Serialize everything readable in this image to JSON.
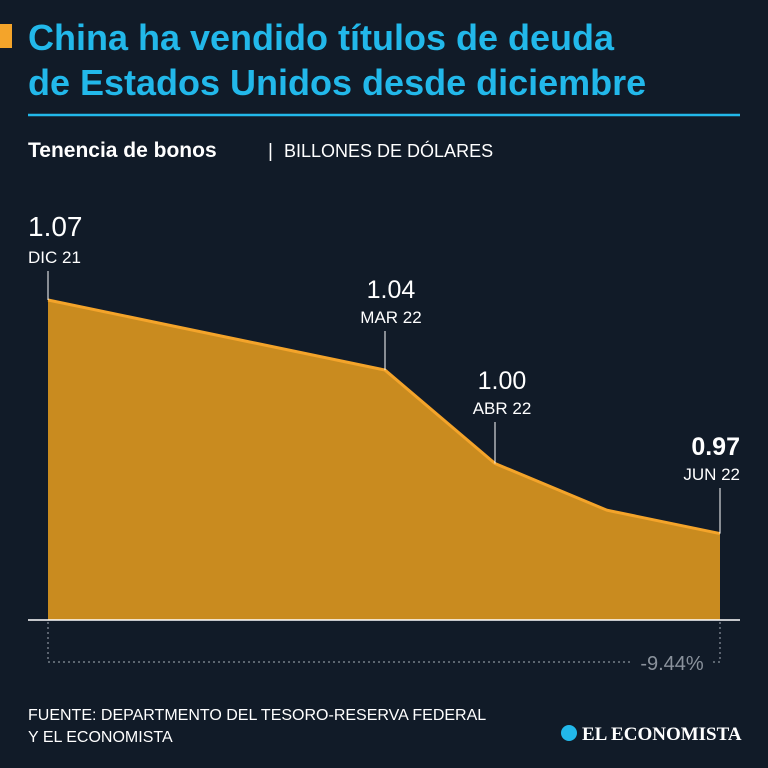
{
  "chart_data": {
    "type": "area",
    "title": [
      "China ha vendido títulos de deuda",
      "de Estados Unidos desde diciembre"
    ],
    "subtitle": "Tenencia de bonos",
    "unit": "BILLONES DE DÓLARES",
    "categories": [
      "DIC 21",
      "MAR 22",
      "ABR 22",
      null,
      "JUN 22"
    ],
    "values": [
      1.07,
      1.04,
      1.0,
      0.98,
      0.97
    ],
    "value_labels": [
      "1.07",
      "1.04",
      "1.00",
      null,
      "0.97"
    ],
    "change_label": "-9.44%",
    "ylim": [
      0.933,
      1.07
    ],
    "color": "#c98b1f",
    "line_color": "#f4a42a",
    "source": [
      "FUENTE: DEPARTMENTO DEL TESORO-RESERVA FEDERAL",
      "Y EL ECONOMISTA"
    ],
    "logo": "EL ECONOMISTA"
  }
}
